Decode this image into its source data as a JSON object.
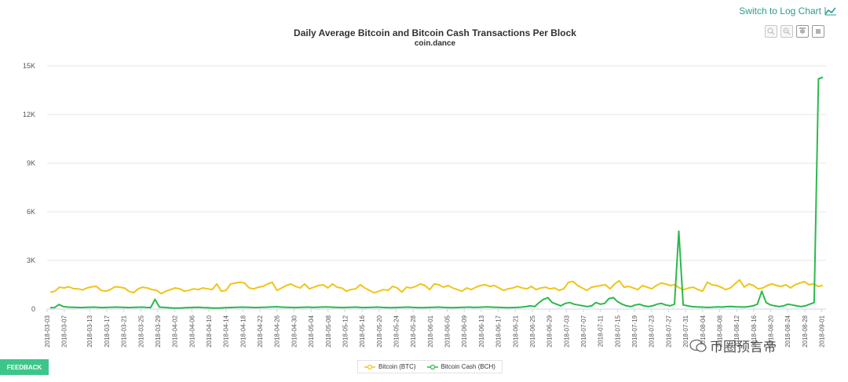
{
  "header": {
    "switch_label": "Switch to Log Chart",
    "switch_icon": "line-chart-icon",
    "toolbar_icons": [
      "zoom-in-icon",
      "zoom-reset-icon",
      "download-icon",
      "menu-icon"
    ]
  },
  "feedback_label": "FEEDBACK",
  "watermark_text": "币圈预言帝",
  "chart_data": {
    "type": "line",
    "title": "Daily Average Bitcoin and Bitcoin Cash Transactions Per Block",
    "subtitle": "coin.dance",
    "xlabel": "",
    "ylabel": "",
    "ylim": [
      0,
      15000
    ],
    "yticks": [
      0,
      3000,
      6000,
      9000,
      12000,
      15000
    ],
    "ytick_labels": [
      "0",
      "3K",
      "6K",
      "9K",
      "12K",
      "15K"
    ],
    "grid": true,
    "legend_position": "bottom-center",
    "x_start": "2018-03-03",
    "x_end": "2018-09-02",
    "xtick_labels": [
      "2018-03-03",
      "2018-03-07",
      "2018-03-13",
      "2018-03-17",
      "2018-03-21",
      "2018-03-25",
      "2018-03-29",
      "2018-04-02",
      "2018-04-06",
      "2018-04-10",
      "2018-04-14",
      "2018-04-18",
      "2018-04-22",
      "2018-04-26",
      "2018-04-30",
      "2018-05-04",
      "2018-05-08",
      "2018-05-12",
      "2018-05-16",
      "2018-05-20",
      "2018-05-24",
      "2018-05-28",
      "2018-06-01",
      "2018-06-05",
      "2018-06-09",
      "2018-06-13",
      "2018-06-17",
      "2018-06-21",
      "2018-06-25",
      "2018-06-29",
      "2018-07-03",
      "2018-07-07",
      "2018-07-11",
      "2018-07-15",
      "2018-07-19",
      "2018-07-23",
      "2018-07-27",
      "2018-07-31",
      "2018-08-04",
      "2018-08-08",
      "2018-08-12",
      "2018-08-16",
      "2018-08-20",
      "2018-08-24",
      "2018-08-28",
      "2018-09-01"
    ],
    "series": [
      {
        "name": "Bitcoin (BTC)",
        "color": "#f0c419",
        "values": [
          1050,
          1100,
          1350,
          1300,
          1380,
          1260,
          1250,
          1180,
          1300,
          1380,
          1400,
          1150,
          1100,
          1200,
          1380,
          1350,
          1300,
          1100,
          1000,
          1250,
          1350,
          1300,
          1200,
          1150,
          950,
          1100,
          1200,
          1300,
          1250,
          1100,
          1150,
          1250,
          1200,
          1300,
          1250,
          1200,
          1550,
          1100,
          1150,
          1550,
          1600,
          1650,
          1600,
          1300,
          1250,
          1350,
          1400,
          1550,
          1650,
          1150,
          1300,
          1450,
          1550,
          1400,
          1300,
          1550,
          1250,
          1350,
          1450,
          1500,
          1300,
          1550,
          1350,
          1300,
          1100,
          1200,
          1250,
          1500,
          1300,
          1150,
          1000,
          1100,
          1200,
          1150,
          1400,
          1300,
          1050,
          1350,
          1300,
          1400,
          1550,
          1450,
          1200,
          1550,
          1500,
          1350,
          1450,
          1300,
          1200,
          1100,
          1300,
          1200,
          1350,
          1450,
          1500,
          1400,
          1450,
          1300,
          1150,
          1250,
          1300,
          1400,
          1300,
          1250,
          1400,
          1200,
          1300,
          1350,
          1250,
          1300,
          1150,
          1250,
          1650,
          1700,
          1450,
          1300,
          1150,
          1350,
          1400,
          1450,
          1500,
          1250,
          1550,
          1750,
          1350,
          1400,
          1300,
          1200,
          1450,
          1350,
          1250,
          1450,
          1600,
          1550,
          1450,
          1500,
          1300,
          1200,
          1300,
          1350,
          1200,
          1100,
          1650,
          1500,
          1450,
          1350,
          1200,
          1300,
          1550,
          1800,
          1350,
          1550,
          1450,
          1250,
          1300,
          1450,
          1550,
          1450,
          1400,
          1500,
          1300,
          1500,
          1600,
          1700,
          1500,
          1550,
          1400,
          1450
        ]
      },
      {
        "name": "Bitcoin Cash (BCH)",
        "color": "#2db84c",
        "values": [
          80,
          90,
          280,
          150,
          120,
          110,
          100,
          90,
          100,
          110,
          120,
          100,
          90,
          100,
          110,
          120,
          110,
          100,
          90,
          100,
          110,
          120,
          100,
          90,
          600,
          120,
          100,
          80,
          70,
          60,
          70,
          80,
          90,
          100,
          110,
          90,
          80,
          70,
          60,
          70,
          80,
          90,
          100,
          110,
          120,
          110,
          100,
          90,
          100,
          110,
          120,
          130,
          140,
          120,
          110,
          100,
          90,
          100,
          110,
          120,
          100,
          110,
          120,
          130,
          120,
          110,
          100,
          90,
          100,
          110,
          120,
          100,
          90,
          100,
          110,
          120,
          100,
          90,
          80,
          90,
          100,
          110,
          120,
          100,
          90,
          80,
          90,
          100,
          110,
          120,
          100,
          90,
          80,
          90,
          100,
          110,
          120,
          100,
          110,
          120,
          130,
          120,
          110,
          100,
          90,
          80,
          90,
          100,
          120,
          150,
          200,
          150,
          400,
          600,
          700,
          400,
          300,
          200,
          350,
          400,
          300,
          250,
          200,
          150,
          200,
          400,
          300,
          350,
          650,
          700,
          450,
          300,
          200,
          150,
          250,
          300,
          200,
          150,
          200,
          300,
          350,
          250,
          200,
          300,
          4800,
          250,
          200,
          150,
          130,
          120,
          110,
          100,
          120,
          130,
          120,
          150,
          160,
          140,
          130,
          120,
          150,
          200,
          300,
          1100,
          400,
          250,
          200,
          150,
          200,
          300,
          250,
          200,
          150,
          200,
          300,
          400,
          14200,
          14300
        ]
      }
    ]
  }
}
